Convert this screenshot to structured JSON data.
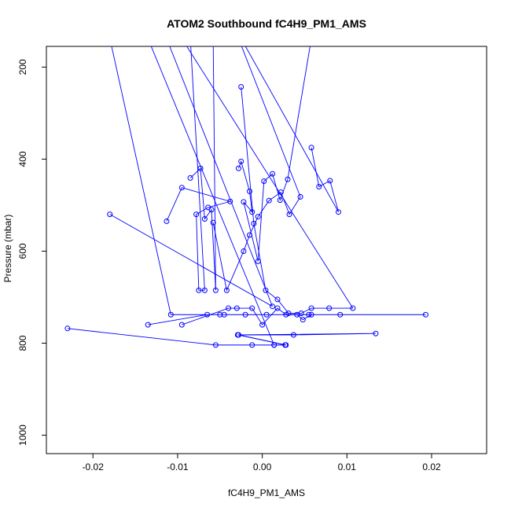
{
  "chart_data": {
    "type": "line",
    "title": "ATOM2 Southbound fC4H9_PM1_AMS",
    "xlabel": "fC4H9_PM1_AMS",
    "ylabel": "Pressure (mbar)",
    "xlim": [
      -0.0255,
      0.0265
    ],
    "ylim": [
      1040,
      155
    ],
    "y_reversed": true,
    "grid": false,
    "series_color": "#0000ff",
    "x_ticks": [
      -0.02,
      -0.01,
      0.0,
      0.01,
      0.02
    ],
    "x_tick_labels": [
      "-0.02",
      "-0.01",
      "0.00",
      "0.01",
      "0.02"
    ],
    "y_ticks": [
      200,
      400,
      600,
      800,
      1000
    ],
    "y_tick_labels": [
      "200",
      "400",
      "600",
      "800",
      "1000"
    ],
    "series": [
      {
        "x": [
          -0.023,
          -0.0055,
          -0.0012,
          0.0014,
          0.0028,
          -0.0028,
          0.0037,
          0.0134,
          -0.0029,
          0.0027,
          0.0014
        ],
        "y": [
          768,
          804,
          804,
          804,
          804,
          782,
          782,
          779,
          782,
          804,
          804
        ]
      },
      {
        "x": [
          -0.0135,
          -0.0065,
          -0.005,
          -0.0045,
          -0.002,
          0.0005,
          0.0055,
          0.0092,
          0.0193,
          -0.0108
        ],
        "y": [
          760,
          738,
          738,
          738,
          738,
          738,
          738,
          738,
          738,
          738
        ]
      },
      {
        "x": [
          -0.018,
          0.0012
        ],
        "y": [
          520,
          720
        ]
      },
      {
        "x": [
          -0.0113,
          -0.0095,
          -0.0038,
          -0.0064,
          -0.0078,
          -0.0075,
          -0.0068
        ],
        "y": [
          535,
          462,
          492,
          505,
          520,
          685,
          685
        ]
      },
      {
        "x": [
          -0.0085,
          -0.0073,
          -0.0068,
          -0.006,
          -0.0055
        ],
        "y": [
          441,
          420,
          530,
          510,
          685
        ]
      },
      {
        "x": [
          -0.0058,
          -0.0042,
          -0.0022,
          -0.0015,
          -0.0005,
          0.0008,
          0.0022,
          0.0032,
          0.0045
        ],
        "y": [
          538,
          685,
          600,
          565,
          525,
          490,
          472,
          520,
          482
        ]
      },
      {
        "x": [
          -0.0028,
          -0.0025,
          -0.0015,
          -0.0012,
          -0.0022,
          -0.0005,
          0.0002,
          0.0012,
          0.0021,
          0.003
        ],
        "y": [
          420,
          405,
          470,
          515,
          493,
          622,
          448,
          432,
          489,
          444
        ]
      },
      {
        "x": [
          0.0058,
          0.0067,
          0.008,
          0.009
        ],
        "y": [
          375,
          460,
          447,
          515
        ]
      },
      {
        "x": [
          -0.0025,
          -0.001,
          0.0004,
          0.0018,
          0.0031,
          0.0046,
          0.0058,
          0.0079,
          0.0107
        ],
        "y": [
          243,
          540,
          685,
          705,
          735,
          735,
          724,
          724,
          724
        ]
      },
      {
        "x": [
          -0.0095,
          -0.004,
          -0.003,
          -0.0012,
          0.0,
          0.0018,
          0.0028,
          0.0041,
          0.0048,
          0.0058
        ],
        "y": [
          760,
          724,
          724,
          724,
          760,
          724,
          738,
          738,
          749,
          738
        ]
      }
    ]
  }
}
